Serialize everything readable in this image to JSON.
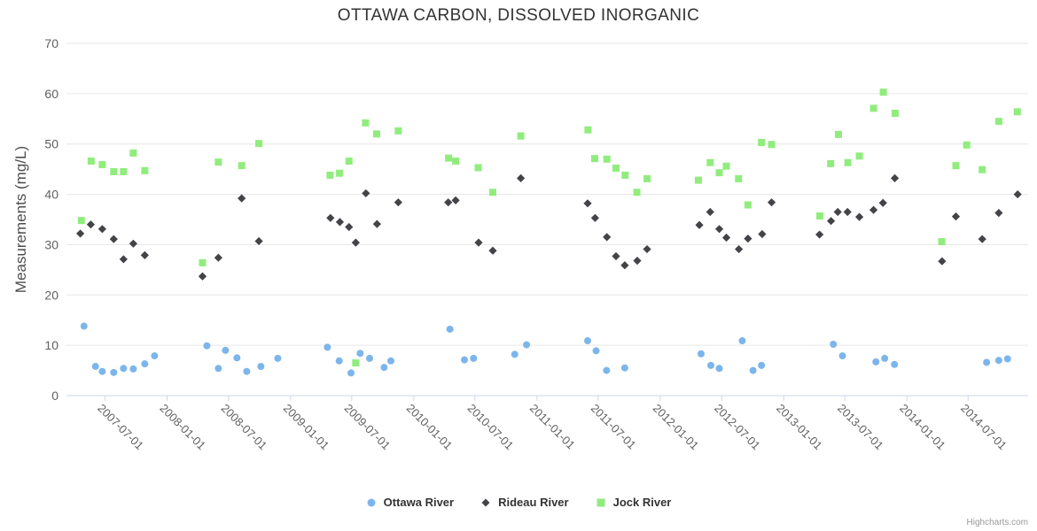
{
  "title": "OTTAWA CARBON, DISSOLVED INORGANIC",
  "credits_label": "Highcharts.com",
  "colors": {
    "grid": "#e6e6e6",
    "axis_line": "#ccd6eb",
    "tick_label": "#606060",
    "title": "#333333",
    "legend_text": "#333333",
    "credits": "#999999"
  },
  "chart_data": {
    "type": "scatter",
    "title": "OTTAWA CARBON, DISSOLVED INORGANIC",
    "xlabel": "",
    "ylabel": "Measurements (mg/L)",
    "ylim": [
      0,
      70
    ],
    "y_ticks": [
      0,
      10,
      20,
      30,
      40,
      50,
      60,
      70
    ],
    "x_range": [
      "2007-03-09",
      "2014-12-26"
    ],
    "x_ticks": [
      "2007-07-01",
      "2008-01-01",
      "2008-07-01",
      "2009-01-01",
      "2009-07-01",
      "2010-01-01",
      "2010-07-01",
      "2011-01-01",
      "2011-07-01",
      "2012-01-01",
      "2012-07-01",
      "2013-01-01",
      "2013-07-01",
      "2014-01-01",
      "2014-07-01"
    ],
    "grid": "horizontal",
    "legend_position": "bottom-center",
    "series": [
      {
        "name": "Ottawa River",
        "color": "#7cb5ec",
        "marker": "circle",
        "points": [
          [
            "2007-04-30",
            13.8
          ],
          [
            "2007-06-03",
            5.8
          ],
          [
            "2007-06-23",
            4.8
          ],
          [
            "2007-07-27",
            4.6
          ],
          [
            "2007-08-25",
            5.4
          ],
          [
            "2007-09-23",
            5.3
          ],
          [
            "2007-10-27",
            6.3
          ],
          [
            "2007-11-25",
            7.9
          ],
          [
            "2008-04-28",
            9.9
          ],
          [
            "2008-06-01",
            5.4
          ],
          [
            "2008-06-22",
            9.0
          ],
          [
            "2008-07-26",
            7.5
          ],
          [
            "2008-08-24",
            4.8
          ],
          [
            "2008-10-05",
            5.8
          ],
          [
            "2008-11-24",
            7.4
          ],
          [
            "2009-04-20",
            9.6
          ],
          [
            "2009-05-25",
            6.9
          ],
          [
            "2009-06-29",
            4.5
          ],
          [
            "2009-07-26",
            8.4
          ],
          [
            "2009-08-23",
            7.4
          ],
          [
            "2009-10-05",
            5.6
          ],
          [
            "2009-10-25",
            6.9
          ],
          [
            "2010-04-18",
            13.2
          ],
          [
            "2010-05-31",
            7.1
          ],
          [
            "2010-06-27",
            7.4
          ],
          [
            "2010-10-27",
            8.2
          ],
          [
            "2010-12-01",
            10.1
          ],
          [
            "2011-05-31",
            10.9
          ],
          [
            "2011-06-25",
            8.9
          ],
          [
            "2011-07-26",
            5.0
          ],
          [
            "2011-09-18",
            5.5
          ],
          [
            "2012-05-01",
            8.3
          ],
          [
            "2012-05-30",
            6.0
          ],
          [
            "2012-06-24",
            5.4
          ],
          [
            "2012-08-31",
            10.9
          ],
          [
            "2012-10-02",
            5.0
          ],
          [
            "2012-10-27",
            6.0
          ],
          [
            "2013-05-28",
            10.2
          ],
          [
            "2013-06-24",
            7.9
          ],
          [
            "2013-10-01",
            6.7
          ],
          [
            "2013-10-27",
            7.4
          ],
          [
            "2013-11-25",
            6.2
          ],
          [
            "2014-08-25",
            6.6
          ],
          [
            "2014-09-30",
            7.0
          ],
          [
            "2014-10-26",
            7.3
          ]
        ]
      },
      {
        "name": "Rideau River",
        "color": "#434348",
        "marker": "diamond",
        "points": [
          [
            "2007-04-19",
            32.2
          ],
          [
            "2007-05-20",
            34.0
          ],
          [
            "2007-06-23",
            33.1
          ],
          [
            "2007-07-27",
            31.1
          ],
          [
            "2007-08-25",
            27.1
          ],
          [
            "2007-09-23",
            30.2
          ],
          [
            "2007-10-27",
            27.9
          ],
          [
            "2008-04-15",
            23.7
          ],
          [
            "2008-06-01",
            27.4
          ],
          [
            "2008-08-09",
            39.2
          ],
          [
            "2008-09-29",
            30.7
          ],
          [
            "2009-04-29",
            35.3
          ],
          [
            "2009-05-27",
            34.5
          ],
          [
            "2009-06-23",
            33.5
          ],
          [
            "2009-07-13",
            30.4
          ],
          [
            "2009-08-12",
            40.2
          ],
          [
            "2009-09-14",
            34.1
          ],
          [
            "2009-11-16",
            38.4
          ],
          [
            "2010-04-13",
            38.4
          ],
          [
            "2010-05-05",
            38.8
          ],
          [
            "2010-07-12",
            30.4
          ],
          [
            "2010-08-23",
            28.8
          ],
          [
            "2010-11-14",
            43.2
          ],
          [
            "2011-05-31",
            38.2
          ],
          [
            "2011-06-22",
            35.3
          ],
          [
            "2011-07-27",
            31.5
          ],
          [
            "2011-08-23",
            27.7
          ],
          [
            "2011-09-18",
            25.9
          ],
          [
            "2011-10-25",
            26.8
          ],
          [
            "2011-11-23",
            29.1
          ],
          [
            "2012-04-26",
            33.9
          ],
          [
            "2012-05-28",
            36.5
          ],
          [
            "2012-06-24",
            33.1
          ],
          [
            "2012-07-15",
            31.4
          ],
          [
            "2012-08-21",
            29.1
          ],
          [
            "2012-09-17",
            31.2
          ],
          [
            "2012-10-29",
            32.1
          ],
          [
            "2012-11-26",
            38.4
          ],
          [
            "2013-04-17",
            32.0
          ],
          [
            "2013-05-21",
            34.7
          ],
          [
            "2013-06-10",
            36.5
          ],
          [
            "2013-07-09",
            36.5
          ],
          [
            "2013-08-13",
            35.5
          ],
          [
            "2013-09-24",
            36.9
          ],
          [
            "2013-10-22",
            38.3
          ],
          [
            "2013-11-26",
            43.2
          ],
          [
            "2014-04-15",
            26.7
          ],
          [
            "2014-05-26",
            35.6
          ],
          [
            "2014-08-12",
            31.1
          ],
          [
            "2014-09-30",
            36.3
          ],
          [
            "2014-11-25",
            40.0
          ]
        ]
      },
      {
        "name": "Jock River",
        "color": "#90ed7d",
        "marker": "square",
        "points": [
          [
            "2007-04-22",
            34.8
          ],
          [
            "2007-05-21",
            46.6
          ],
          [
            "2007-06-23",
            45.9
          ],
          [
            "2007-07-27",
            44.5
          ],
          [
            "2007-08-25",
            44.5
          ],
          [
            "2007-09-23",
            48.2
          ],
          [
            "2007-10-27",
            44.7
          ],
          [
            "2008-04-15",
            26.4
          ],
          [
            "2008-06-01",
            46.4
          ],
          [
            "2008-08-09",
            45.7
          ],
          [
            "2008-09-29",
            50.1
          ],
          [
            "2009-04-28",
            43.8
          ],
          [
            "2009-05-26",
            44.2
          ],
          [
            "2009-06-23",
            46.6
          ],
          [
            "2009-07-13",
            6.5
          ],
          [
            "2009-08-11",
            54.2
          ],
          [
            "2009-09-13",
            52.0
          ],
          [
            "2009-11-16",
            52.6
          ],
          [
            "2010-04-14",
            47.2
          ],
          [
            "2010-05-05",
            46.6
          ],
          [
            "2010-07-11",
            45.3
          ],
          [
            "2010-08-23",
            40.4
          ],
          [
            "2010-11-14",
            51.6
          ],
          [
            "2011-06-01",
            52.8
          ],
          [
            "2011-06-21",
            47.1
          ],
          [
            "2011-07-27",
            47.0
          ],
          [
            "2011-08-23",
            45.2
          ],
          [
            "2011-09-19",
            43.8
          ],
          [
            "2011-10-24",
            40.4
          ],
          [
            "2011-11-23",
            43.1
          ],
          [
            "2012-04-23",
            42.8
          ],
          [
            "2012-05-28",
            46.3
          ],
          [
            "2012-06-24",
            44.3
          ],
          [
            "2012-07-15",
            45.6
          ],
          [
            "2012-08-20",
            43.1
          ],
          [
            "2012-09-17",
            37.9
          ],
          [
            "2012-10-27",
            50.3
          ],
          [
            "2012-11-26",
            49.9
          ],
          [
            "2013-04-18",
            35.7
          ],
          [
            "2013-05-20",
            46.1
          ],
          [
            "2013-06-12",
            51.9
          ],
          [
            "2013-07-10",
            46.3
          ],
          [
            "2013-08-13",
            47.6
          ],
          [
            "2013-09-24",
            57.1
          ],
          [
            "2013-10-23",
            60.3
          ],
          [
            "2013-11-27",
            56.1
          ],
          [
            "2014-04-14",
            30.6
          ],
          [
            "2014-05-26",
            45.7
          ],
          [
            "2014-06-27",
            49.8
          ],
          [
            "2014-08-12",
            44.9
          ],
          [
            "2014-09-30",
            54.5
          ],
          [
            "2014-11-24",
            56.4
          ]
        ]
      }
    ]
  }
}
